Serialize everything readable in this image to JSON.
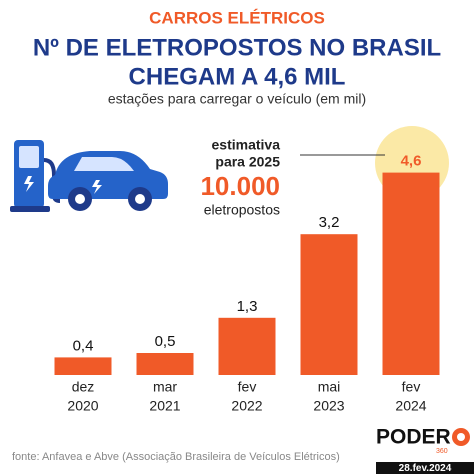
{
  "chart_data": {
    "type": "bar",
    "kicker": "CARROS ELÉTRICOS",
    "title": [
      "Nº DE ELETROPOSTOS NO BRASIL",
      "CHEGAM A 4,6 MIL"
    ],
    "subtitle": "estações para carregar o veículo (em mil)",
    "categories": [
      [
        "dez",
        "2020"
      ],
      [
        "mar",
        "2021"
      ],
      [
        "fev",
        "2022"
      ],
      [
        "mai",
        "2023"
      ],
      [
        "fev",
        "2024"
      ]
    ],
    "values": [
      0.4,
      0.5,
      1.3,
      3.2,
      4.6
    ],
    "value_labels": [
      "0,4",
      "0,5",
      "1,3",
      "3,2",
      "4,6"
    ],
    "color": "#f05a28",
    "annotation": {
      "text": [
        "estimativa",
        "para 2025"
      ],
      "value": "10.000",
      "unit": "eletropostos"
    },
    "source": "fonte: Anfavea e Abve (Associação Brasileira de Veículos Elétricos)",
    "brand": "PODER",
    "brand_suffix": "360",
    "date": "28.fev.2024"
  }
}
